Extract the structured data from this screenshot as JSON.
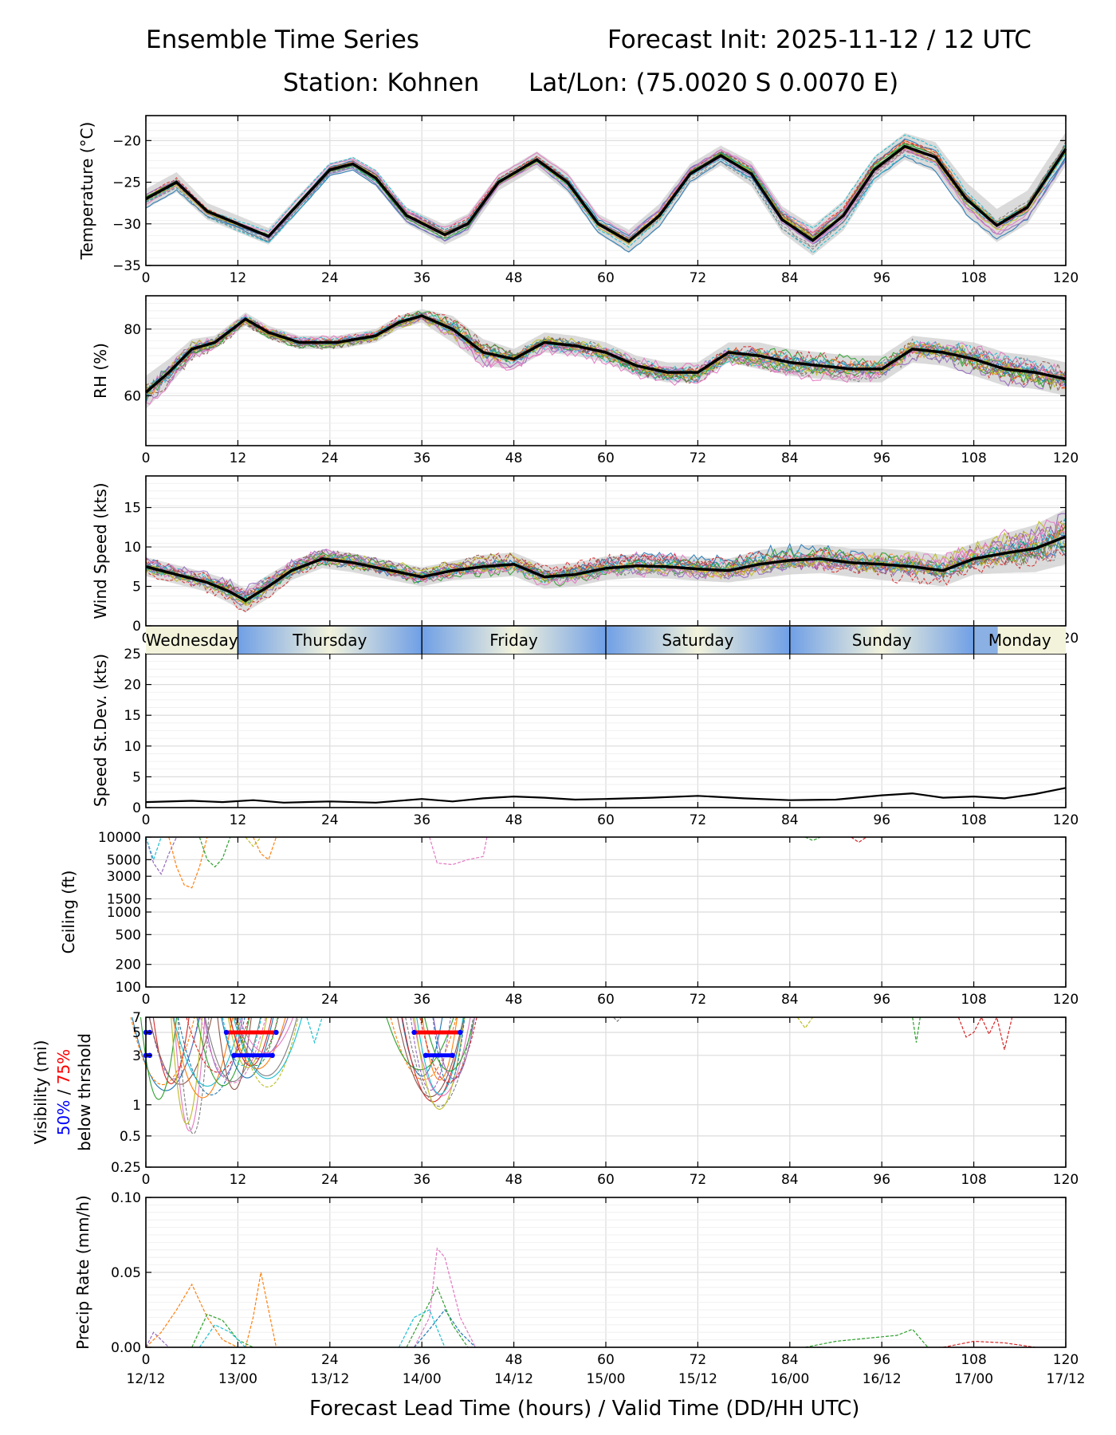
{
  "header": {
    "title_left": "Ensemble Time Series",
    "title_right": "Forecast Init: 2025-11-12 / 12 UTC",
    "station": "Station: Kohnen",
    "latlon": "Lat/Lon: (75.0020 S 0.0070 E)"
  },
  "xaxis": {
    "label": "Forecast Lead Time (hours) / Valid Time (DD/HH UTC)",
    "range": [
      0,
      120
    ],
    "ticks": [
      0,
      12,
      24,
      36,
      48,
      60,
      72,
      84,
      96,
      108,
      120
    ],
    "valid_times": [
      "12/12",
      "13/00",
      "13/12",
      "14/00",
      "14/12",
      "15/00",
      "15/12",
      "16/00",
      "16/12",
      "17/00",
      "17/12"
    ]
  },
  "colors": {
    "mean_line": "#000000",
    "spread_band": "#cccccc",
    "day_blue": "#6f9fe6",
    "day_cream": "#f3f3dc",
    "threshold_50": "#0000ff",
    "threshold_75": "#ff0000",
    "members": [
      "#1f77b4",
      "#ff7f0e",
      "#2ca02c",
      "#d62728",
      "#9467bd",
      "#8c564b",
      "#e377c2",
      "#7f7f7f",
      "#bcbd22",
      "#17becf"
    ]
  },
  "day_band": {
    "days": [
      {
        "label": "Wednesday",
        "start": 0,
        "end": 12
      },
      {
        "label": "Thursday",
        "start": 12,
        "end": 36
      },
      {
        "label": "Friday",
        "start": 36,
        "end": 60
      },
      {
        "label": "Saturday",
        "start": 60,
        "end": 84
      },
      {
        "label": "Sunday",
        "start": 84,
        "end": 108
      },
      {
        "label": "Monday",
        "start": 108,
        "end": 120
      }
    ]
  },
  "chart_data": [
    {
      "id": "temperature",
      "type": "line",
      "ylabel": "Temperature (°C)",
      "ylim": [
        -35,
        -17
      ],
      "yticks": [
        -35,
        -30,
        -25,
        -20
      ],
      "ytick_labels": [
        "−35",
        "−30",
        "−25",
        "−20"
      ],
      "grid": true,
      "x": [
        0,
        4,
        8,
        12,
        16,
        20,
        24,
        27,
        30,
        34,
        39,
        42,
        46,
        51,
        55,
        59,
        63,
        67,
        71,
        75,
        79,
        83,
        87,
        91,
        95,
        99,
        103,
        107,
        111,
        115,
        120
      ],
      "mean": [
        -27,
        -25,
        -28.5,
        -30,
        -31.5,
        -27.5,
        -23.5,
        -22.8,
        -24.5,
        -29,
        -31.3,
        -30,
        -25,
        -22.3,
        -25,
        -30,
        -32.1,
        -29,
        -24,
        -21.8,
        -24,
        -29.5,
        -32,
        -29,
        -23.5,
        -20.7,
        -22,
        -27,
        -30.2,
        -28,
        -21
      ],
      "spread": [
        1.2,
        1.2,
        1,
        1,
        1,
        1,
        0.8,
        0.8,
        1,
        1,
        1.2,
        1.2,
        1,
        1,
        1.2,
        1.2,
        1.4,
        1.4,
        1.2,
        1.2,
        1.5,
        1.6,
        1.8,
        1.8,
        1.6,
        1.6,
        1.8,
        2,
        2,
        2,
        2
      ]
    },
    {
      "id": "rh",
      "type": "line",
      "ylabel": "RH (%)",
      "ylim": [
        45,
        90
      ],
      "yticks": [
        60,
        80
      ],
      "ytick_labels": [
        "60",
        "80"
      ],
      "grid": true,
      "x": [
        0,
        3,
        6,
        9,
        13,
        16,
        20,
        25,
        30,
        33,
        36,
        40,
        44,
        48,
        52,
        56,
        60,
        64,
        68,
        72,
        76,
        80,
        84,
        88,
        92,
        96,
        100,
        104,
        108,
        112,
        116,
        120
      ],
      "mean": [
        61,
        67,
        74,
        76,
        83,
        79,
        76,
        76,
        78,
        82,
        84,
        80,
        73,
        71,
        76,
        75,
        73,
        69,
        67,
        67,
        73,
        72,
        70,
        69,
        68,
        68,
        74,
        73,
        71,
        68,
        67,
        65
      ],
      "spread": [
        5,
        4,
        3,
        2,
        2,
        2,
        2,
        2,
        2,
        2,
        2,
        4,
        4,
        3,
        3,
        3,
        3,
        3,
        3,
        3,
        3,
        4,
        4,
        4,
        4,
        4,
        4,
        4,
        5,
        5,
        5,
        5
      ]
    },
    {
      "id": "wind_speed",
      "type": "line",
      "ylabel": "Wind Speed (kts)",
      "ylim": [
        0,
        19
      ],
      "yticks": [
        0,
        5,
        10,
        15
      ],
      "ytick_labels": [
        "0",
        "5",
        "10",
        "15"
      ],
      "grid": true,
      "x": [
        0,
        4,
        8,
        11,
        13,
        16,
        19,
        23,
        27,
        32,
        36,
        40,
        44,
        48,
        52,
        56,
        60,
        64,
        68,
        72,
        76,
        80,
        84,
        88,
        92,
        96,
        100,
        104,
        108,
        112,
        116,
        120
      ],
      "mean": [
        7.5,
        6.5,
        5.5,
        4.3,
        3.2,
        5,
        7,
        8.5,
        8,
        7,
        6.2,
        7,
        7.5,
        7.8,
        6.2,
        6.5,
        7.3,
        7.6,
        7.5,
        7.2,
        7,
        7.8,
        8.3,
        8.5,
        8,
        7.8,
        7.5,
        7,
        8.5,
        9.2,
        9.8,
        11.3
      ],
      "spread": [
        1.2,
        1.2,
        1.2,
        1.5,
        1.5,
        1.5,
        1.2,
        1.2,
        1.2,
        1.2,
        1.2,
        1.2,
        1.5,
        1.5,
        1.5,
        1.5,
        1.5,
        1.5,
        1.5,
        1.5,
        1.5,
        1.8,
        1.8,
        1.8,
        1.8,
        2,
        2,
        2,
        2,
        2.5,
        3,
        3.5
      ]
    },
    {
      "id": "speed_stdev",
      "type": "line",
      "ylabel": "Speed St.Dev. (kts)",
      "ylim": [
        0,
        25
      ],
      "yticks": [
        0,
        5,
        10,
        15,
        20,
        25
      ],
      "ytick_labels": [
        "0",
        "5",
        "10",
        "15",
        "20",
        "25"
      ],
      "grid": true,
      "x": [
        0,
        6,
        10,
        14,
        18,
        24,
        30,
        36,
        40,
        44,
        48,
        52,
        56,
        60,
        66,
        72,
        78,
        84,
        90,
        96,
        100,
        104,
        108,
        112,
        116,
        120
      ],
      "values": [
        0.9,
        1.1,
        0.9,
        1.2,
        0.8,
        1.0,
        0.8,
        1.4,
        1.0,
        1.5,
        1.8,
        1.6,
        1.3,
        1.4,
        1.6,
        1.9,
        1.5,
        1.2,
        1.3,
        2.0,
        2.3,
        1.6,
        1.8,
        1.5,
        2.2,
        3.2
      ]
    },
    {
      "id": "ceiling",
      "type": "line",
      "scale": "log",
      "ylabel": "Ceiling (ft)",
      "ylim": [
        100,
        10000
      ],
      "yticks": [
        100,
        200,
        500,
        1000,
        1500,
        3000,
        5000,
        10000
      ],
      "ytick_labels": [
        "100",
        "200",
        "500",
        "1000",
        "1500",
        "3000",
        "5000",
        "10000"
      ],
      "grid": true,
      "member_segments": [
        {
          "color": 4,
          "x": [
            0,
            1,
            2,
            3,
            4
          ],
          "y": [
            10000,
            4500,
            3200,
            6000,
            10000
          ]
        },
        {
          "color": 1,
          "x": [
            3,
            4,
            5,
            6,
            7,
            8
          ],
          "y": [
            10000,
            4000,
            2300,
            2100,
            4000,
            10000
          ]
        },
        {
          "color": 2,
          "x": [
            7,
            8,
            9,
            10,
            11
          ],
          "y": [
            10000,
            5000,
            4000,
            5200,
            10000
          ]
        },
        {
          "color": 9,
          "x": [
            0,
            1,
            2
          ],
          "y": [
            10000,
            5000,
            10000
          ]
        },
        {
          "color": 1,
          "x": [
            14,
            15,
            16,
            17
          ],
          "y": [
            10000,
            6000,
            5000,
            10000
          ]
        },
        {
          "color": 8,
          "x": [
            13,
            14,
            15
          ],
          "y": [
            10000,
            7500,
            10000
          ]
        },
        {
          "color": 6,
          "x": [
            37,
            38,
            40,
            42,
            44,
            44.5
          ],
          "y": [
            10000,
            4500,
            4300,
            5000,
            5500,
            10000
          ]
        },
        {
          "color": 2,
          "x": [
            86,
            87,
            88
          ],
          "y": [
            10000,
            9000,
            10000
          ]
        },
        {
          "color": 3,
          "x": [
            92,
            93,
            94
          ],
          "y": [
            10000,
            8500,
            10000
          ]
        }
      ]
    },
    {
      "id": "visibility",
      "type": "line",
      "scale": "log",
      "ylabel": "Visibility (mi)",
      "ylabel_pct50": "50%",
      "ylabel_sep": " / ",
      "ylabel_pct75": "75%",
      "ylabel_below": "below thrshold",
      "ylim": [
        0.25,
        7
      ],
      "yticks": [
        0.25,
        0.5,
        1,
        3,
        5,
        7
      ],
      "ytick_labels": [
        "0.25",
        "0.5",
        "1",
        "3",
        "5",
        "7"
      ],
      "grid": true,
      "group_dips": [
        {
          "start": 0,
          "end": 17,
          "centers": [
            2,
            4,
            6,
            8,
            10,
            12,
            13,
            14,
            15,
            16
          ],
          "minima": [
            1.0,
            1.2,
            0.5,
            1.0,
            1.5,
            1.3,
            1.6,
            1.8,
            2.0,
            1.4
          ]
        },
        {
          "start": 33,
          "end": 43,
          "centers": [
            36,
            37,
            38,
            39,
            40
          ],
          "minima": [
            1.5,
            1.0,
            0.9,
            1.2,
            1.6
          ]
        }
      ],
      "member_segments": [
        {
          "color": 9,
          "x": [
            21,
            22,
            23
          ],
          "y": [
            7,
            4,
            7
          ]
        },
        {
          "color": 8,
          "x": [
            85,
            86,
            87
          ],
          "y": [
            7,
            5.5,
            7
          ]
        },
        {
          "color": 2,
          "x": [
            100,
            100.5,
            101
          ],
          "y": [
            7,
            4,
            7
          ]
        },
        {
          "color": 3,
          "x": [
            106,
            107,
            108,
            109,
            110,
            111,
            112,
            113
          ],
          "y": [
            7,
            4.5,
            5,
            7,
            4.8,
            7,
            3.4,
            7
          ]
        },
        {
          "color": 7,
          "x": [
            61,
            61.5,
            62
          ],
          "y": [
            7,
            6.4,
            7
          ]
        }
      ],
      "threshold_bars": [
        {
          "level": 5,
          "start": 0,
          "end": 0.5,
          "style": "blue"
        },
        {
          "level": 3,
          "start": 0,
          "end": 0.5,
          "style": "blue"
        },
        {
          "level": 5,
          "start": 10.5,
          "end": 17,
          "style": "red"
        },
        {
          "level": 3,
          "start": 11.5,
          "end": 16.5,
          "style": "blue"
        },
        {
          "level": 5,
          "start": 35,
          "end": 41,
          "style": "red"
        },
        {
          "level": 3,
          "start": 36.5,
          "end": 40,
          "style": "blue"
        }
      ]
    },
    {
      "id": "precip_rate",
      "type": "line",
      "ylabel": "Precip Rate (mm/h)",
      "ylim": [
        0,
        0.1
      ],
      "yticks": [
        0,
        0.05,
        0.1
      ],
      "ytick_labels": [
        "0.00",
        "0.05",
        "0.10"
      ],
      "grid": true,
      "member_segments": [
        {
          "color": 1,
          "x": [
            0,
            2,
            4,
            6,
            8,
            10,
            12
          ],
          "y": [
            0,
            0.01,
            0.025,
            0.042,
            0.02,
            0.005,
            0
          ]
        },
        {
          "color": 1,
          "x": [
            13,
            14,
            15,
            16,
            17
          ],
          "y": [
            0,
            0.02,
            0.05,
            0.025,
            0
          ]
        },
        {
          "color": 4,
          "x": [
            0,
            1,
            2,
            3
          ],
          "y": [
            0,
            0.01,
            0.005,
            0
          ]
        },
        {
          "color": 2,
          "x": [
            6,
            8,
            10,
            12,
            14
          ],
          "y": [
            0,
            0.022,
            0.018,
            0.005,
            0
          ]
        },
        {
          "color": 9,
          "x": [
            7,
            9,
            11,
            13
          ],
          "y": [
            0,
            0.015,
            0.01,
            0
          ]
        },
        {
          "color": 6,
          "x": [
            35,
            37,
            38,
            39,
            40,
            41,
            43
          ],
          "y": [
            0,
            0.02,
            0.066,
            0.06,
            0.04,
            0.02,
            0
          ]
        },
        {
          "color": 0,
          "x": [
            35,
            37,
            39,
            41,
            43
          ],
          "y": [
            0,
            0.012,
            0.025,
            0.01,
            0
          ]
        },
        {
          "color": 2,
          "x": [
            34,
            36,
            38,
            40,
            42
          ],
          "y": [
            0,
            0.02,
            0.04,
            0.015,
            0
          ]
        },
        {
          "color": 9,
          "x": [
            33,
            35,
            37,
            39
          ],
          "y": [
            0,
            0.02,
            0.025,
            0
          ]
        },
        {
          "color": 2,
          "x": [
            86,
            90,
            94,
            98,
            100,
            102
          ],
          "y": [
            0,
            0.004,
            0.006,
            0.008,
            0.012,
            0
          ]
        },
        {
          "color": 3,
          "x": [
            104,
            108,
            112,
            116
          ],
          "y": [
            0,
            0.004,
            0.003,
            0
          ]
        }
      ]
    }
  ]
}
